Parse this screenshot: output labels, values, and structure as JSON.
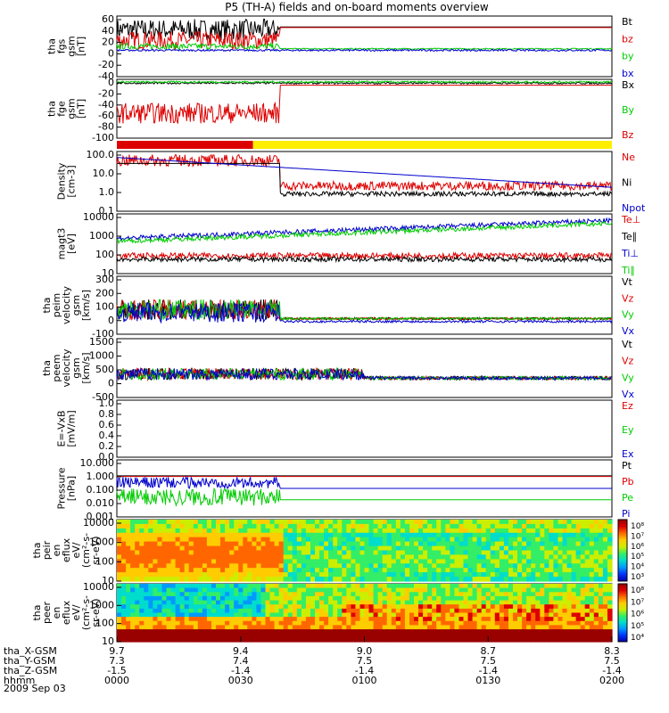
{
  "title": "P5 (TH-A) fields and on-board moments overview",
  "date_label": "2009 Sep 03",
  "colors": {
    "black": "#000000",
    "red": "#dd0000",
    "green": "#00cc00",
    "blue": "#0000cc",
    "yellow": "#ffee00"
  },
  "chart_data": [
    {
      "type": "line",
      "ylabel": [
        "tha",
        "fgs",
        "gsm",
        "[nT]"
      ],
      "yticks": [
        "60",
        "40",
        "20",
        "0",
        "-20",
        "-40"
      ],
      "ylim": [
        -40,
        60
      ],
      "series": [
        {
          "name": "Bt",
          "color": "black"
        },
        {
          "name": "bz",
          "color": "red"
        },
        {
          "name": "by",
          "color": "green"
        },
        {
          "name": "bx",
          "color": "blue"
        }
      ]
    },
    {
      "type": "line",
      "ylabel": [
        "tha",
        "fge",
        "gsm",
        "[nT]"
      ],
      "yticks": [
        "0",
        "-20",
        "-40",
        "-60",
        "-80",
        "-100"
      ],
      "ylim": [
        -110,
        5
      ],
      "series": [
        {
          "name": "Bx",
          "color": "black"
        },
        {
          "name": "By",
          "color": "green"
        },
        {
          "name": "Bz",
          "color": "red"
        }
      ]
    },
    {
      "type": "bar",
      "name": "mode_bar",
      "segments": [
        {
          "from": "0000",
          "to": "0033",
          "color": "red"
        },
        {
          "from": "0033",
          "to": "0200",
          "color": "yellow"
        }
      ]
    },
    {
      "type": "line",
      "ylabel": [
        "Density",
        "[cm-3]"
      ],
      "yticks": [
        "100.0",
        "10.0",
        "1.0",
        "0.1"
      ],
      "log": true,
      "series": [
        {
          "name": "Ne",
          "color": "red"
        },
        {
          "name": "Ni",
          "color": "black"
        },
        {
          "name": "Npot",
          "color": "blue"
        }
      ]
    },
    {
      "type": "line",
      "ylabel": [
        "magt3",
        "[eV]"
      ],
      "yticks": [
        "10000",
        "1000",
        "100",
        "10"
      ],
      "log": true,
      "series": [
        {
          "name": "Te⊥",
          "color": "red"
        },
        {
          "name": "Te∥",
          "color": "black"
        },
        {
          "name": "Ti⊥",
          "color": "blue"
        },
        {
          "name": "Ti∥",
          "color": "green"
        }
      ]
    },
    {
      "type": "line",
      "ylabel": [
        "tha",
        "peim",
        "velocity",
        "gsm",
        "[km/s]"
      ],
      "yticks": [
        "300",
        "200",
        "100",
        "0",
        "-100"
      ],
      "ylim": [
        -100,
        300
      ],
      "series": [
        {
          "name": "Vt",
          "color": "black"
        },
        {
          "name": "Vz",
          "color": "red"
        },
        {
          "name": "Vy",
          "color": "green"
        },
        {
          "name": "Vx",
          "color": "blue"
        }
      ]
    },
    {
      "type": "line",
      "ylabel": [
        "tha",
        "peem",
        "velocity",
        "gsm",
        "[km/s]"
      ],
      "yticks": [
        "1500",
        "1000",
        "500",
        "0",
        "-500"
      ],
      "ylim": [
        -600,
        1500
      ],
      "series": [
        {
          "name": "Vt",
          "color": "black"
        },
        {
          "name": "Vz",
          "color": "red"
        },
        {
          "name": "Vy",
          "color": "green"
        },
        {
          "name": "Vx",
          "color": "blue"
        }
      ]
    },
    {
      "type": "line",
      "ylabel": [
        "E=-VxB",
        "[mV/m]"
      ],
      "yticks": [
        "1.0",
        "0.8",
        "0.6",
        "0.4",
        "0.2",
        "0.0"
      ],
      "ylim": [
        0,
        1
      ],
      "series": [
        {
          "name": "Ez",
          "color": "red"
        },
        {
          "name": "Ey",
          "color": "green"
        },
        {
          "name": "Ex",
          "color": "blue"
        }
      ]
    },
    {
      "type": "line",
      "ylabel": [
        "Pressure",
        "[nPa]"
      ],
      "yticks": [
        "10.000",
        "1.000",
        "0.100",
        "0.010",
        "0.001"
      ],
      "log": true,
      "series": [
        {
          "name": "Pt",
          "color": "black"
        },
        {
          "name": "Pb",
          "color": "red"
        },
        {
          "name": "Pe",
          "color": "green"
        },
        {
          "name": "Pi",
          "color": "blue"
        }
      ]
    },
    {
      "type": "heatmap",
      "ylabel": [
        "tha",
        "peir",
        "en",
        "eflux",
        "eV/",
        "(cm²-s-",
        "sr-eV)"
      ],
      "yticks": [
        "10000",
        "1000",
        "100",
        "10"
      ],
      "colorbar": [
        "10⁸",
        "10⁷",
        "10⁶",
        "10⁵",
        "10⁴",
        "10³"
      ]
    },
    {
      "type": "heatmap",
      "ylabel": [
        "tha",
        "peer",
        "en",
        "eflux",
        "eV/",
        "(cm²-s-",
        "sr-eV)"
      ],
      "yticks": [
        "10000",
        "1000",
        "100",
        "10"
      ],
      "colorbar": [
        "10⁸",
        "10⁷",
        "10⁶",
        "10⁵",
        "10⁴"
      ]
    }
  ],
  "x_axis": {
    "row_labels": [
      "tha_X-GSM",
      "tha_Y-GSM",
      "tha_Z-GSM",
      "hhmm"
    ],
    "columns": [
      [
        "9.7",
        "7.3",
        "-1.5",
        "0000"
      ],
      [
        "9.4",
        "7.4",
        "-1.4",
        "0030"
      ],
      [
        "9.0",
        "7.5",
        "-1.4",
        "0100"
      ],
      [
        "8.7",
        "7.5",
        "-1.4",
        "0130"
      ],
      [
        "8.3",
        "7.5",
        "-1.4",
        "0200"
      ]
    ]
  }
}
